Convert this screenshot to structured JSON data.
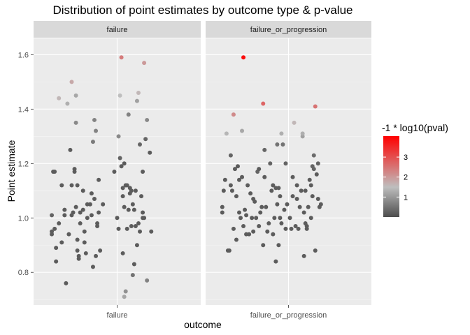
{
  "chart_data": {
    "type": "scatter",
    "title": "Distribution of point estimates by outcome type & p-value",
    "xlabel": "outcome",
    "ylabel": "Point estimate",
    "ylim": [
      0.68,
      1.66
    ],
    "yticks": [
      0.8,
      1.0,
      1.2,
      1.4,
      1.6
    ],
    "ytick_labels": [
      "0.8",
      "1.0",
      "1.2",
      "1.4",
      "1.6"
    ],
    "grid": true,
    "jitter": "horizontal",
    "facets": [
      {
        "strip": "failure",
        "xtick": "failure",
        "points": [
          {
            "x": -0.92,
            "y": 1.01,
            "c": 0.3
          },
          {
            "x": -0.92,
            "y": 0.95,
            "c": 0.2
          },
          {
            "x": -0.92,
            "y": 0.94,
            "c": 0.2
          },
          {
            "x": -0.88,
            "y": 1.17,
            "c": 0.2
          },
          {
            "x": -0.9,
            "y": 1.17,
            "c": 0.2
          },
          {
            "x": -0.88,
            "y": 0.96,
            "c": 0.2
          },
          {
            "x": -0.86,
            "y": 0.89,
            "c": 0.2
          },
          {
            "x": -0.86,
            "y": 0.84,
            "c": 0.2
          },
          {
            "x": -0.82,
            "y": 1.44,
            "c": 1.6
          },
          {
            "x": -0.82,
            "y": 0.98,
            "c": 0.2
          },
          {
            "x": -0.78,
            "y": 1.12,
            "c": 0.2
          },
          {
            "x": -0.78,
            "y": 0.91,
            "c": 0.2
          },
          {
            "x": -0.74,
            "y": 1.03,
            "c": 0.2
          },
          {
            "x": -0.74,
            "y": 1.01,
            "c": 0.2
          },
          {
            "x": -0.72,
            "y": 0.76,
            "c": 0.2
          },
          {
            "x": -0.7,
            "y": 1.42,
            "c": 1.3
          },
          {
            "x": -0.68,
            "y": 0.94,
            "c": 0.2
          },
          {
            "x": -0.66,
            "y": 1.25,
            "c": 0.2
          },
          {
            "x": -0.64,
            "y": 1.12,
            "c": 0.2
          },
          {
            "x": -0.64,
            "y": 1.5,
            "c": 1.8
          },
          {
            "x": -0.64,
            "y": 1.01,
            "c": 0.2
          },
          {
            "x": -0.62,
            "y": 1.02,
            "c": 0.2
          },
          {
            "x": -0.6,
            "y": 1.18,
            "c": 0.2
          },
          {
            "x": -0.6,
            "y": 1.17,
            "c": 0.2
          },
          {
            "x": -0.58,
            "y": 1.04,
            "c": 0.2
          },
          {
            "x": -0.58,
            "y": 1.45,
            "c": 1.2
          },
          {
            "x": -0.58,
            "y": 1.35,
            "c": 0.8
          },
          {
            "x": -0.56,
            "y": 1.12,
            "c": 0.2
          },
          {
            "x": -0.56,
            "y": 0.92,
            "c": 0.2
          },
          {
            "x": -0.56,
            "y": 0.88,
            "c": 0.2
          },
          {
            "x": -0.54,
            "y": 0.86,
            "c": 0.2
          },
          {
            "x": -0.54,
            "y": 0.85,
            "c": 0.2
          },
          {
            "x": -0.52,
            "y": 0.98,
            "c": 0.2
          },
          {
            "x": -0.52,
            "y": 1.02,
            "c": 0.2
          },
          {
            "x": -0.48,
            "y": 1.1,
            "c": 0.2
          },
          {
            "x": -0.48,
            "y": 1.03,
            "c": 0.2
          },
          {
            "x": -0.46,
            "y": 0.95,
            "c": 0.2
          },
          {
            "x": -0.46,
            "y": 0.91,
            "c": 0.2
          },
          {
            "x": -0.44,
            "y": 0.87,
            "c": 0.2
          },
          {
            "x": -0.42,
            "y": 1.0,
            "c": 0.2
          },
          {
            "x": -0.42,
            "y": 1.05,
            "c": 0.2
          },
          {
            "x": -0.38,
            "y": 1.05,
            "c": 0.2
          },
          {
            "x": -0.36,
            "y": 1.01,
            "c": 0.2
          },
          {
            "x": -0.36,
            "y": 1.09,
            "c": 0.2
          },
          {
            "x": -0.34,
            "y": 1.28,
            "c": 0.6
          },
          {
            "x": -0.34,
            "y": 0.82,
            "c": 0.2
          },
          {
            "x": -0.32,
            "y": 1.36,
            "c": 0.7
          },
          {
            "x": -0.32,
            "y": 1.07,
            "c": 0.2
          },
          {
            "x": -0.3,
            "y": 0.86,
            "c": 0.2
          },
          {
            "x": -0.3,
            "y": 1.32,
            "c": 0.7
          },
          {
            "x": -0.28,
            "y": 0.97,
            "c": 0.2
          },
          {
            "x": -0.26,
            "y": 1.02,
            "c": 0.2
          },
          {
            "x": -0.26,
            "y": 1.14,
            "c": 0.2
          },
          {
            "x": -0.24,
            "y": 0.88,
            "c": 0.2
          },
          {
            "x": -0.2,
            "y": 1.05,
            "c": 0.2
          },
          {
            "x": -0.28,
            "y": 0.98,
            "c": 0.2
          },
          {
            "x": -0.04,
            "y": 1.17,
            "c": 0.2
          },
          {
            "x": 0.0,
            "y": 1.0,
            "c": 0.2
          },
          {
            "x": 0.02,
            "y": 0.96,
            "c": 0.2
          },
          {
            "x": 0.02,
            "y": 1.3,
            "c": 0.8
          },
          {
            "x": 0.04,
            "y": 1.22,
            "c": 0.3
          },
          {
            "x": 0.04,
            "y": 1.45,
            "c": 1.5
          },
          {
            "x": 0.06,
            "y": 1.59,
            "c": 2.4
          },
          {
            "x": 0.06,
            "y": 1.19,
            "c": 0.2
          },
          {
            "x": 0.08,
            "y": 1.11,
            "c": 0.2
          },
          {
            "x": 0.08,
            "y": 0.87,
            "c": 0.2
          },
          {
            "x": 0.08,
            "y": 1.08,
            "c": 0.2
          },
          {
            "x": 0.1,
            "y": 1.04,
            "c": 0.2
          },
          {
            "x": 0.1,
            "y": 1.2,
            "c": 0.2
          },
          {
            "x": 0.1,
            "y": 0.71,
            "c": 1.2
          },
          {
            "x": 0.12,
            "y": 1.12,
            "c": 0.2
          },
          {
            "x": 0.12,
            "y": 0.73,
            "c": 0.9
          },
          {
            "x": 0.14,
            "y": 1.12,
            "c": 0.2
          },
          {
            "x": 0.16,
            "y": 1.38,
            "c": 0.7
          },
          {
            "x": 0.16,
            "y": 1.03,
            "c": 0.2
          },
          {
            "x": 0.18,
            "y": 1.09,
            "c": 0.2
          },
          {
            "x": 0.18,
            "y": 1.11,
            "c": 0.2
          },
          {
            "x": 0.2,
            "y": 0.97,
            "c": 0.2
          },
          {
            "x": 0.2,
            "y": 1.1,
            "c": 0.2
          },
          {
            "x": 0.22,
            "y": 0.79,
            "c": 0.5
          },
          {
            "x": 0.22,
            "y": 1.05,
            "c": 0.2
          },
          {
            "x": 0.24,
            "y": 0.83,
            "c": 0.2
          },
          {
            "x": 0.24,
            "y": 1.03,
            "c": 0.2
          },
          {
            "x": 0.26,
            "y": 0.97,
            "c": 0.2
          },
          {
            "x": 0.26,
            "y": 1.1,
            "c": 0.2
          },
          {
            "x": 0.28,
            "y": 1.43,
            "c": 1.1
          },
          {
            "x": 0.3,
            "y": 1.46,
            "c": 1.6
          },
          {
            "x": 0.3,
            "y": 0.98,
            "c": 0.2
          },
          {
            "x": 0.28,
            "y": 0.9,
            "c": 0.2
          },
          {
            "x": 0.32,
            "y": 1.27,
            "c": 0.3
          },
          {
            "x": 0.32,
            "y": 0.95,
            "c": 0.2
          },
          {
            "x": 0.34,
            "y": 1.08,
            "c": 0.2
          },
          {
            "x": 0.36,
            "y": 1.0,
            "c": 0.2
          },
          {
            "x": 0.36,
            "y": 1.02,
            "c": 0.2
          },
          {
            "x": 0.38,
            "y": 1.57,
            "c": 2.0
          },
          {
            "x": 0.38,
            "y": 1.0,
            "c": 0.2
          },
          {
            "x": 0.4,
            "y": 1.29,
            "c": 0.3
          },
          {
            "x": 0.42,
            "y": 1.36,
            "c": 0.8
          },
          {
            "x": 0.42,
            "y": 0.77,
            "c": 0.7
          },
          {
            "x": 0.46,
            "y": 1.24,
            "c": 0.2
          },
          {
            "x": 0.48,
            "y": 0.95,
            "c": 0.2
          },
          {
            "x": 0.36,
            "y": 1.17,
            "c": 0.2
          },
          {
            "x": 0.14,
            "y": 0.96,
            "c": 0.2
          }
        ]
      },
      {
        "strip": "failure_or_progression",
        "xtick": "failure_or_progression",
        "points": [
          {
            "x": -0.94,
            "y": 1.04,
            "c": 0.2
          },
          {
            "x": -0.94,
            "y": 1.02,
            "c": 0.2
          },
          {
            "x": -0.92,
            "y": 1.1,
            "c": 0.2
          },
          {
            "x": -0.9,
            "y": 1.14,
            "c": 0.2
          },
          {
            "x": -0.88,
            "y": 1.31,
            "c": 1.4
          },
          {
            "x": -0.86,
            "y": 0.88,
            "c": 0.2
          },
          {
            "x": -0.84,
            "y": 0.88,
            "c": 0.2
          },
          {
            "x": -0.82,
            "y": 1.23,
            "c": 0.3
          },
          {
            "x": -0.82,
            "y": 1.12,
            "c": 0.2
          },
          {
            "x": -0.8,
            "y": 1.1,
            "c": 0.2
          },
          {
            "x": -0.78,
            "y": 1.38,
            "c": 2.2
          },
          {
            "x": -0.78,
            "y": 0.96,
            "c": 0.2
          },
          {
            "x": -0.76,
            "y": 1.18,
            "c": 0.2
          },
          {
            "x": -0.74,
            "y": 0.92,
            "c": 0.2
          },
          {
            "x": -0.74,
            "y": 1.08,
            "c": 0.2
          },
          {
            "x": -0.72,
            "y": 1.19,
            "c": 0.2
          },
          {
            "x": -0.7,
            "y": 1.02,
            "c": 0.2
          },
          {
            "x": -0.7,
            "y": 1.14,
            "c": 0.2
          },
          {
            "x": -0.68,
            "y": 1.0,
            "c": 0.2
          },
          {
            "x": -0.66,
            "y": 1.15,
            "c": 0.2
          },
          {
            "x": -0.66,
            "y": 1.32,
            "c": 1.2
          },
          {
            "x": -0.64,
            "y": 1.59,
            "c": 3.9
          },
          {
            "x": -0.64,
            "y": 0.97,
            "c": 0.2
          },
          {
            "x": -0.62,
            "y": 1.03,
            "c": 0.2
          },
          {
            "x": -0.6,
            "y": 0.94,
            "c": 0.2
          },
          {
            "x": -0.6,
            "y": 1.01,
            "c": 0.2
          },
          {
            "x": -0.58,
            "y": 1.12,
            "c": 0.2
          },
          {
            "x": -0.56,
            "y": 0.94,
            "c": 0.2
          },
          {
            "x": -0.54,
            "y": 1.09,
            "c": 0.2
          },
          {
            "x": -0.52,
            "y": 1.0,
            "c": 0.2
          },
          {
            "x": -0.5,
            "y": 0.95,
            "c": 0.2
          },
          {
            "x": -0.48,
            "y": 1.06,
            "c": 0.2
          },
          {
            "x": -0.46,
            "y": 1.0,
            "c": 0.2
          },
          {
            "x": -0.44,
            "y": 1.17,
            "c": 0.3
          },
          {
            "x": -0.42,
            "y": 0.97,
            "c": 0.2
          },
          {
            "x": -0.42,
            "y": 1.18,
            "c": 0.2
          },
          {
            "x": -0.4,
            "y": 1.02,
            "c": 0.2
          },
          {
            "x": -0.38,
            "y": 1.04,
            "c": 0.2
          },
          {
            "x": -0.36,
            "y": 1.42,
            "c": 2.7
          },
          {
            "x": -0.36,
            "y": 0.9,
            "c": 0.2
          },
          {
            "x": -0.34,
            "y": 1.25,
            "c": 0.3
          },
          {
            "x": -0.34,
            "y": 1.15,
            "c": 0.2
          },
          {
            "x": -0.32,
            "y": 1.04,
            "c": 0.2
          },
          {
            "x": -0.3,
            "y": 0.95,
            "c": 0.2
          },
          {
            "x": -0.28,
            "y": 0.98,
            "c": 0.2
          },
          {
            "x": -0.26,
            "y": 1.2,
            "c": 0.3
          },
          {
            "x": -0.24,
            "y": 1.1,
            "c": 0.2
          },
          {
            "x": -0.22,
            "y": 0.94,
            "c": 0.2
          },
          {
            "x": -0.22,
            "y": 1.12,
            "c": 0.2
          },
          {
            "x": -0.2,
            "y": 1.0,
            "c": 0.2
          },
          {
            "x": -0.18,
            "y": 1.11,
            "c": 0.2
          },
          {
            "x": -0.18,
            "y": 0.84,
            "c": 0.2
          },
          {
            "x": -0.16,
            "y": 1.27,
            "c": 0.5
          },
          {
            "x": -0.16,
            "y": 1.05,
            "c": 0.2
          },
          {
            "x": -0.14,
            "y": 1.11,
            "c": 0.2
          },
          {
            "x": -0.14,
            "y": 0.9,
            "c": 0.2
          },
          {
            "x": -0.12,
            "y": 1.0,
            "c": 0.2
          },
          {
            "x": -0.12,
            "y": 1.08,
            "c": 0.2
          },
          {
            "x": -0.1,
            "y": 1.31,
            "c": 1.3
          },
          {
            "x": -0.1,
            "y": 0.98,
            "c": 0.2
          },
          {
            "x": -0.08,
            "y": 1.27,
            "c": 0.5
          },
          {
            "x": -0.06,
            "y": 1.03,
            "c": 0.2
          },
          {
            "x": -0.04,
            "y": 1.2,
            "c": 0.3
          },
          {
            "x": -0.04,
            "y": 0.96,
            "c": 0.2
          },
          {
            "x": -0.02,
            "y": 1.05,
            "c": 0.2
          },
          {
            "x": 0.02,
            "y": 1.0,
            "c": 0.2
          },
          {
            "x": 0.04,
            "y": 0.96,
            "c": 0.2
          },
          {
            "x": 0.06,
            "y": 1.15,
            "c": 0.2
          },
          {
            "x": 0.06,
            "y": 1.08,
            "c": 0.2
          },
          {
            "x": 0.08,
            "y": 1.35,
            "c": 1.6
          },
          {
            "x": 0.1,
            "y": 0.97,
            "c": 0.2
          },
          {
            "x": 0.12,
            "y": 1.12,
            "c": 0.2
          },
          {
            "x": 0.12,
            "y": 1.07,
            "c": 0.2
          },
          {
            "x": 0.14,
            "y": 0.96,
            "c": 0.2
          },
          {
            "x": 0.16,
            "y": 1.04,
            "c": 0.2
          },
          {
            "x": 0.18,
            "y": 1.1,
            "c": 0.2
          },
          {
            "x": 0.2,
            "y": 1.3,
            "c": 1.1
          },
          {
            "x": 0.2,
            "y": 1.31,
            "c": 1.3
          },
          {
            "x": 0.22,
            "y": 0.86,
            "c": 0.2
          },
          {
            "x": 0.22,
            "y": 1.02,
            "c": 0.2
          },
          {
            "x": 0.24,
            "y": 1.1,
            "c": 0.2
          },
          {
            "x": 0.26,
            "y": 0.97,
            "c": 0.2
          },
          {
            "x": 0.26,
            "y": 0.96,
            "c": 0.2
          },
          {
            "x": 0.28,
            "y": 1.04,
            "c": 0.2
          },
          {
            "x": 0.3,
            "y": 1.14,
            "c": 0.2
          },
          {
            "x": 0.32,
            "y": 1.0,
            "c": 0.2
          },
          {
            "x": 0.34,
            "y": 1.08,
            "c": 0.2
          },
          {
            "x": 0.34,
            "y": 1.19,
            "c": 0.3
          },
          {
            "x": 0.36,
            "y": 1.18,
            "c": 0.3
          },
          {
            "x": 0.36,
            "y": 1.23,
            "c": 0.4
          },
          {
            "x": 0.38,
            "y": 1.41,
            "c": 2.5
          },
          {
            "x": 0.38,
            "y": 0.88,
            "c": 0.2
          },
          {
            "x": 0.4,
            "y": 1.16,
            "c": 0.2
          },
          {
            "x": 0.42,
            "y": 1.2,
            "c": 0.3
          },
          {
            "x": 0.42,
            "y": 1.07,
            "c": 0.2
          },
          {
            "x": 0.44,
            "y": 1.04,
            "c": 0.2
          },
          {
            "x": 0.46,
            "y": 1.05,
            "c": 0.2
          },
          {
            "x": 0.32,
            "y": 1.12,
            "c": 0.2
          },
          {
            "x": 0.24,
            "y": 0.98,
            "c": 0.2
          },
          {
            "x": -0.5,
            "y": 1.07,
            "c": 0.2
          }
        ]
      }
    ],
    "legend": {
      "title": "-1 * log10(pval)",
      "placement": "right",
      "range": [
        0.0,
        4.05
      ],
      "ticks": [
        1,
        2,
        3
      ],
      "tick_labels": [
        "1",
        "2",
        "3"
      ],
      "low_color": "#4d4d4d",
      "mid_color": "#bebebe",
      "high_color": "#ff0000",
      "mid_value": 1.5
    },
    "colors": {
      "panel_bg": "#ebebeb",
      "strip_bg": "#d9d9d9",
      "grid_major": "#ffffff",
      "tick_text": "#4d4d4d"
    }
  }
}
